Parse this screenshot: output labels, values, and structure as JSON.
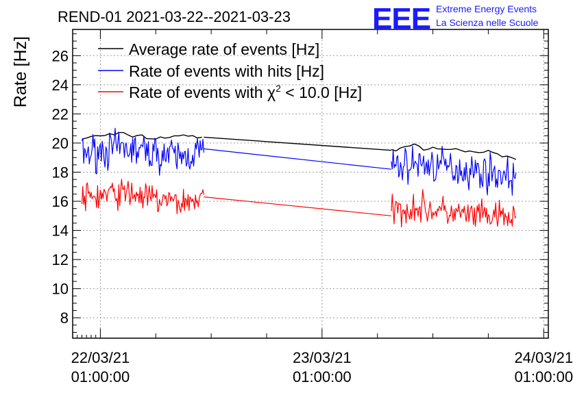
{
  "chart_data": {
    "type": "line",
    "title": "REND-01 2021-03-22--2021-03-23",
    "ylabel": "Rate [Hz]",
    "xlabel": "",
    "ylim": [
      6.6,
      27.8
    ],
    "y_ticks": [
      8,
      10,
      12,
      14,
      16,
      18,
      20,
      22,
      24,
      26
    ],
    "x_range_hours": [
      -3.0,
      48.5
    ],
    "x_ticks": [
      {
        "hour": 0,
        "date": "22/03/21",
        "time": "01:00:00"
      },
      {
        "hour": 24,
        "date": "23/03/21",
        "time": "01:00:00"
      },
      {
        "hour": 48,
        "date": "24/03/21",
        "time": "01:00:00"
      }
    ],
    "grid": true,
    "legend_position": "top-left",
    "series": [
      {
        "name": "Average rate of events [Hz]",
        "color": "#000000",
        "noise": 0.08,
        "segments": [
          {
            "x": [
              -2.0,
              0.0,
              2.0,
              4.0,
              6.0,
              8.0,
              10.5,
              11.2
            ],
            "y": [
              20.3,
              20.5,
              20.6,
              20.5,
              20.3,
              20.5,
              20.4,
              20.4
            ]
          },
          {
            "x": [
              11.2,
              31.5
            ],
            "y": [
              20.4,
              19.5
            ]
          },
          {
            "x": [
              31.5,
              33.0,
              35.0,
              37.0,
              39.0,
              41.0,
              43.0,
              45.0
            ],
            "y": [
              19.5,
              19.8,
              19.7,
              19.6,
              19.5,
              19.4,
              19.2,
              18.9
            ]
          }
        ]
      },
      {
        "name": "Rate of events with hits [Hz]",
        "color": "#0000ff",
        "noise": 0.6,
        "segments": [
          {
            "x": [
              -2.0,
              0.0,
              3.0,
              6.0,
              9.0,
              11.2
            ],
            "y": [
              19.2,
              19.5,
              19.6,
              19.3,
              19.0,
              19.6
            ]
          },
          {
            "x": [
              11.2,
              31.5
            ],
            "y": [
              19.6,
              18.2
            ]
          },
          {
            "x": [
              31.5,
              34.0,
              37.0,
              40.0,
              43.0,
              45.0
            ],
            "y": [
              18.3,
              18.6,
              18.4,
              18.1,
              17.9,
              17.6
            ]
          }
        ]
      },
      {
        "name": "Rate of events with χ² < 10.0 [Hz]",
        "color": "#ff0000",
        "noise": 0.5,
        "segments": [
          {
            "x": [
              -2.0,
              0.0,
              3.0,
              6.0,
              9.0,
              11.2
            ],
            "y": [
              16.2,
              16.4,
              16.6,
              16.1,
              15.9,
              16.3
            ]
          },
          {
            "x": [
              11.2,
              31.5
            ],
            "y": [
              16.3,
              15.0
            ]
          },
          {
            "x": [
              31.5,
              34.0,
              37.0,
              40.0,
              43.0,
              45.0
            ],
            "y": [
              15.3,
              15.6,
              15.3,
              15.0,
              14.9,
              14.8
            ]
          }
        ]
      }
    ]
  },
  "legend": {
    "avg_label": "Average rate of events [Hz]",
    "hits_label": "Rate of events with hits [Hz]",
    "chi_prefix": "Rate of events with χ",
    "chi_sup": "2",
    "chi_suffix": " < 10.0 [Hz]"
  },
  "logo": {
    "mark": "EEE",
    "line1": "Extreme Energy Events",
    "line2": "La Scienza nelle Scuole",
    "color": "#1a1aff"
  }
}
